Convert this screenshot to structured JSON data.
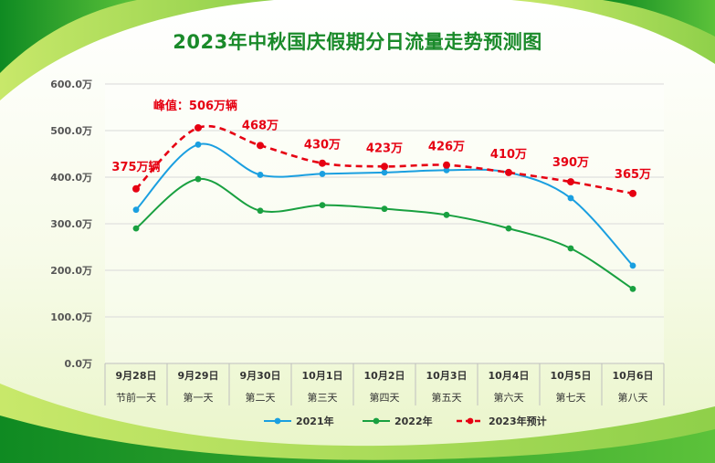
{
  "colors": {
    "title": "#1a8a2a",
    "series_2021": "#1a9fe0",
    "series_2022": "#19a040",
    "series_2023": "#e60012",
    "peak_label": "#e60012",
    "axis_text": "#555555",
    "frame_green_dark": "#1e9a2e",
    "frame_green_light": "#a6d84a"
  },
  "chart_data": {
    "type": "line",
    "title": "2023年中秋国庆假期分日流量走势预测图",
    "categories_date": [
      "9月28日",
      "9月29日",
      "9月30日",
      "10月1日",
      "10月2日",
      "10月3日",
      "10月4日",
      "10月5日",
      "10月6日"
    ],
    "categories_day": [
      "节前一天",
      "第一天",
      "第二天",
      "第三天",
      "第四天",
      "第五天",
      "第六天",
      "第七天",
      "第八天"
    ],
    "y_ticks": [
      "0.0万",
      "100.0万",
      "200.0万",
      "300.0万",
      "400.0万",
      "500.0万",
      "600.0万"
    ],
    "ylim": [
      0,
      600
    ],
    "grid": true,
    "legend_position": "bottom",
    "series": [
      {
        "name": "2021年",
        "values": [
          330,
          470,
          405,
          407,
          410,
          415,
          410,
          355,
          210
        ]
      },
      {
        "name": "2022年",
        "values": [
          290,
          396,
          328,
          340,
          332,
          319,
          290,
          247,
          160
        ]
      },
      {
        "name": "2023年预计",
        "values": [
          375,
          506,
          468,
          430,
          423,
          426,
          410,
          390,
          365
        ],
        "labels": [
          "375万辆",
          "峰值：506万辆",
          "468万",
          "430万",
          "423万",
          "426万",
          "410万",
          "390万",
          "365万"
        ]
      }
    ]
  }
}
